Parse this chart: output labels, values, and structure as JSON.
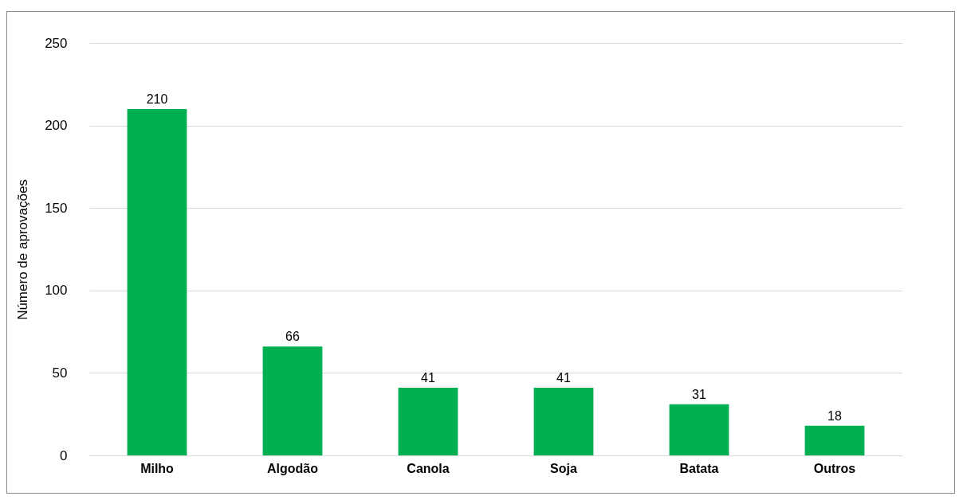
{
  "chart_data": {
    "type": "bar",
    "ylabel": "Número de aprovações",
    "categories": [
      "Milho",
      "Algodão",
      "Canola",
      "Soja",
      "Batata",
      "Outros"
    ],
    "values": [
      210,
      66,
      41,
      41,
      31,
      18
    ],
    "color": "#00b050",
    "ylim": [
      0,
      250
    ],
    "yticks": [
      0,
      50,
      100,
      150,
      200,
      250
    ],
    "grid": "y",
    "data_labels": true
  }
}
